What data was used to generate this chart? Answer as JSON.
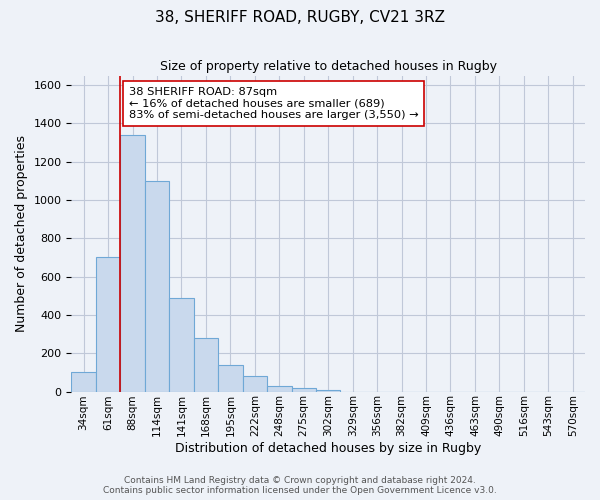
{
  "title": "38, SHERIFF ROAD, RUGBY, CV21 3RZ",
  "subtitle": "Size of property relative to detached houses in Rugby",
  "xlabel": "Distribution of detached houses by size in Rugby",
  "ylabel": "Number of detached properties",
  "bin_labels": [
    "34sqm",
    "61sqm",
    "88sqm",
    "114sqm",
    "141sqm",
    "168sqm",
    "195sqm",
    "222sqm",
    "248sqm",
    "275sqm",
    "302sqm",
    "329sqm",
    "356sqm",
    "382sqm",
    "409sqm",
    "436sqm",
    "463sqm",
    "490sqm",
    "516sqm",
    "543sqm",
    "570sqm"
  ],
  "bar_values": [
    100,
    700,
    1340,
    1100,
    490,
    280,
    140,
    80,
    30,
    20,
    10,
    0,
    0,
    0,
    0,
    0,
    0,
    0,
    0,
    0,
    0
  ],
  "bar_color": "#c9d9ed",
  "bar_edge_color": "#6fa8d6",
  "grid_color": "#c0c8d8",
  "background_color": "#eef2f8",
  "vline_x": 2,
  "vline_color": "#cc0000",
  "annotation_text": "38 SHERIFF ROAD: 87sqm\n← 16% of detached houses are smaller (689)\n83% of semi-detached houses are larger (3,550) →",
  "annotation_box_color": "#ffffff",
  "annotation_box_edge": "#cc0000",
  "ylim": [
    0,
    1650
  ],
  "yticks": [
    0,
    200,
    400,
    600,
    800,
    1000,
    1200,
    1400,
    1600
  ],
  "footer1": "Contains HM Land Registry data © Crown copyright and database right 2024.",
  "footer2": "Contains public sector information licensed under the Open Government Licence v3.0."
}
